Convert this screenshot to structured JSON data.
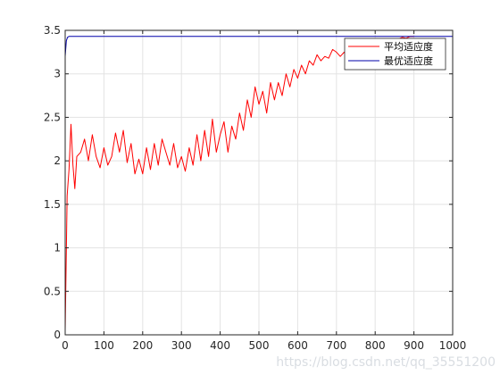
{
  "chart_data": {
    "type": "line",
    "title": "",
    "xlabel": "",
    "ylabel": "",
    "xlim": [
      0,
      1000
    ],
    "ylim": [
      0,
      3.5
    ],
    "x_ticks": [
      "0",
      "100",
      "200",
      "300",
      "400",
      "500",
      "600",
      "700",
      "800",
      "900",
      "1000"
    ],
    "y_ticks": [
      "0",
      "0.5",
      "1",
      "1.5",
      "2",
      "2.5",
      "3",
      "3.5"
    ],
    "grid": true,
    "legend_position": "top-right",
    "series": [
      {
        "name": "平均适应度",
        "color": "#ff0000",
        "x": [
          0,
          5,
          10,
          15,
          20,
          25,
          30,
          40,
          50,
          60,
          70,
          80,
          90,
          100,
          110,
          120,
          130,
          140,
          150,
          160,
          170,
          180,
          190,
          200,
          210,
          220,
          230,
          240,
          250,
          260,
          270,
          280,
          290,
          300,
          310,
          320,
          330,
          340,
          350,
          360,
          370,
          380,
          390,
          400,
          410,
          420,
          430,
          440,
          450,
          460,
          470,
          480,
          490,
          500,
          510,
          520,
          530,
          540,
          550,
          560,
          570,
          580,
          590,
          600,
          610,
          620,
          630,
          640,
          650,
          660,
          670,
          680,
          690,
          700,
          710,
          720,
          730,
          740,
          750,
          760,
          770,
          780,
          790,
          800,
          810,
          820,
          830,
          840,
          850,
          860,
          870,
          880,
          890,
          900
        ],
        "y": [
          0.05,
          1.6,
          1.9,
          2.42,
          1.95,
          1.68,
          2.05,
          2.1,
          2.25,
          2.0,
          2.3,
          2.05,
          1.92,
          2.15,
          1.95,
          2.05,
          2.32,
          2.1,
          2.35,
          1.98,
          2.2,
          1.85,
          2.02,
          1.85,
          2.15,
          1.9,
          2.2,
          1.95,
          2.25,
          2.1,
          1.95,
          2.2,
          1.92,
          2.05,
          1.88,
          2.15,
          1.95,
          2.3,
          2.0,
          2.35,
          2.05,
          2.48,
          2.1,
          2.3,
          2.45,
          2.1,
          2.4,
          2.25,
          2.55,
          2.35,
          2.7,
          2.5,
          2.85,
          2.65,
          2.8,
          2.55,
          2.9,
          2.7,
          2.9,
          2.75,
          3.0,
          2.85,
          3.05,
          2.95,
          3.1,
          3.0,
          3.15,
          3.1,
          3.22,
          3.15,
          3.2,
          3.18,
          3.28,
          3.25,
          3.2,
          3.25,
          3.22,
          3.2,
          3.28,
          3.26,
          3.3,
          3.28,
          3.32,
          3.3,
          3.35,
          3.33,
          3.38,
          3.36,
          3.4,
          3.4,
          3.42,
          3.41,
          3.43,
          3.43
        ]
      },
      {
        "name": "最优适应度",
        "color": "#0000aa",
        "x": [
          0,
          3,
          6,
          10,
          20,
          50,
          100,
          200,
          300,
          400,
          500,
          600,
          700,
          750,
          800,
          850,
          900,
          950,
          1000
        ],
        "y": [
          3.2,
          3.38,
          3.42,
          3.43,
          3.43,
          3.43,
          3.43,
          3.43,
          3.43,
          3.43,
          3.43,
          3.43,
          3.43,
          3.43,
          3.43,
          3.43,
          3.43,
          3.43,
          3.43
        ]
      }
    ]
  },
  "watermark": "https://blog.csdn.net/qq_35551200"
}
